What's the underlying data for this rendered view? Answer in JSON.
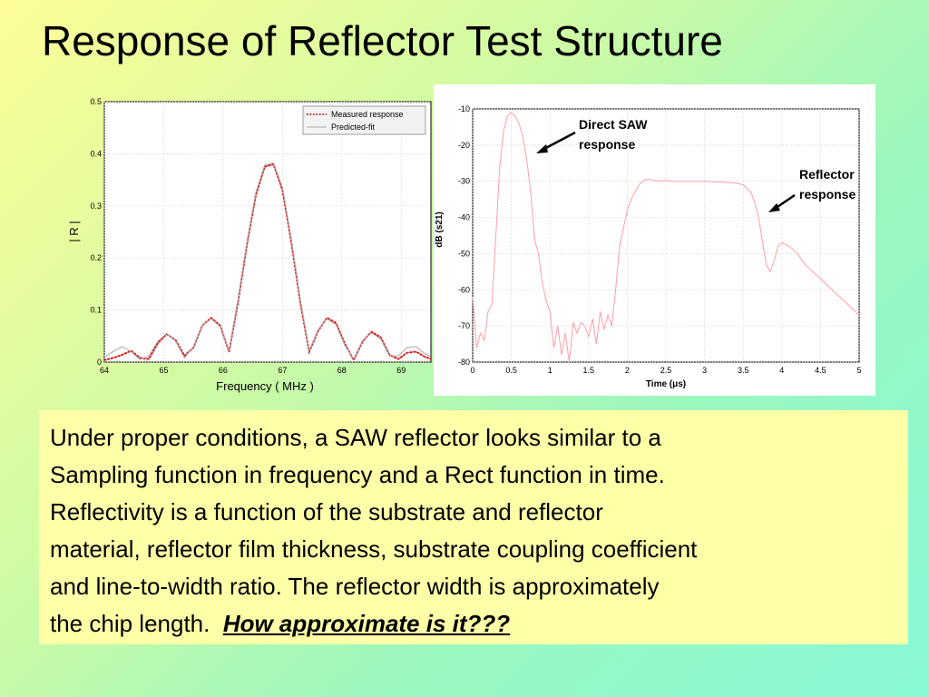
{
  "slide": {
    "title": "Response of Reflector Test Structure"
  },
  "colors": {
    "measured": "#dd1a1a",
    "predicted": "#a8a8a8",
    "time_trace": "#ff9ea8",
    "grid": "#c8c8c8",
    "caption_bg": "#ffffa8"
  },
  "chart_data": [
    {
      "type": "line",
      "xlabel": "Frequency ( MHz )",
      "ylabel": "| R |",
      "xlim": [
        64,
        69.5
      ],
      "ylim": [
        0,
        0.5
      ],
      "xticks": [
        "64",
        "65",
        "66",
        "67",
        "68",
        "69"
      ],
      "yticks": [
        "0",
        "0.1",
        "0.2",
        "0.3",
        "0.4",
        "0.5"
      ],
      "grid": true,
      "legend_position": "top-right",
      "series": [
        {
          "name": "Measured response",
          "style": "dotted",
          "x": [
            64.0,
            64.15,
            64.3,
            64.45,
            64.6,
            64.75,
            64.9,
            65.05,
            65.2,
            65.35,
            65.5,
            65.65,
            65.8,
            65.95,
            66.1,
            66.25,
            66.4,
            66.55,
            66.7,
            66.85,
            67.0,
            67.15,
            67.3,
            67.45,
            67.6,
            67.75,
            67.9,
            68.05,
            68.2,
            68.35,
            68.5,
            68.65,
            68.8,
            68.95,
            69.1,
            69.25,
            69.4,
            69.5
          ],
          "y": [
            0.004,
            0.008,
            0.014,
            0.022,
            0.008,
            0.006,
            0.036,
            0.054,
            0.042,
            0.012,
            0.028,
            0.07,
            0.085,
            0.07,
            0.02,
            0.115,
            0.225,
            0.32,
            0.375,
            0.38,
            0.33,
            0.23,
            0.115,
            0.02,
            0.06,
            0.085,
            0.075,
            0.035,
            0.004,
            0.04,
            0.058,
            0.048,
            0.014,
            0.006,
            0.018,
            0.02,
            0.01,
            0.006
          ]
        },
        {
          "name": "Predicted-fit",
          "style": "solid",
          "x": [
            64.0,
            64.15,
            64.3,
            64.45,
            64.6,
            64.75,
            64.9,
            65.05,
            65.2,
            65.35,
            65.5,
            65.65,
            65.8,
            65.95,
            66.1,
            66.25,
            66.4,
            66.55,
            66.7,
            66.85,
            67.0,
            67.15,
            67.3,
            67.45,
            67.6,
            67.75,
            67.9,
            68.05,
            68.2,
            68.35,
            68.5,
            68.65,
            68.8,
            68.95,
            69.1,
            69.25,
            69.4,
            69.5
          ],
          "y": [
            0.01,
            0.02,
            0.03,
            0.02,
            0.005,
            0.012,
            0.04,
            0.055,
            0.04,
            0.008,
            0.03,
            0.07,
            0.083,
            0.068,
            0.022,
            0.12,
            0.23,
            0.325,
            0.378,
            0.382,
            0.335,
            0.235,
            0.12,
            0.022,
            0.062,
            0.083,
            0.072,
            0.032,
            0.006,
            0.042,
            0.056,
            0.045,
            0.012,
            0.012,
            0.028,
            0.03,
            0.016,
            0.01
          ]
        }
      ]
    },
    {
      "type": "line",
      "xlabel": "Time (μs)",
      "ylabel": "dB (s21)",
      "xlim": [
        0,
        5
      ],
      "ylim": [
        -80,
        -10
      ],
      "xticks": [
        "0",
        "0.5",
        "1",
        "1.5",
        "2",
        "2.5",
        "3",
        "3.5",
        "4",
        "4.5",
        "5"
      ],
      "yticks": [
        "-10",
        "-20",
        "-30",
        "-40",
        "-50",
        "-60",
        "-70",
        "-80"
      ],
      "grid": true,
      "series": [
        {
          "x": [
            0.0,
            0.05,
            0.1,
            0.15,
            0.2,
            0.25,
            0.3,
            0.35,
            0.4,
            0.45,
            0.5,
            0.55,
            0.6,
            0.65,
            0.7,
            0.75,
            0.8,
            0.85,
            0.9,
            0.95,
            1.0,
            1.05,
            1.1,
            1.15,
            1.2,
            1.25,
            1.3,
            1.35,
            1.4,
            1.45,
            1.5,
            1.55,
            1.6,
            1.65,
            1.7,
            1.75,
            1.8,
            1.85,
            1.9,
            1.95,
            2.0,
            2.05,
            2.1,
            2.15,
            2.2,
            2.25,
            2.3,
            2.35,
            2.4,
            2.5,
            2.6,
            2.8,
            3.0,
            3.2,
            3.4,
            3.5,
            3.6,
            3.65,
            3.7,
            3.75,
            3.8,
            3.85,
            3.9,
            3.95,
            4.0,
            4.1,
            4.2,
            4.3,
            4.4,
            4.5,
            4.6,
            4.7,
            4.8,
            4.9,
            5.0
          ],
          "y": [
            -62,
            -76,
            -72,
            -74,
            -66,
            -64,
            -45,
            -26,
            -16,
            -12,
            -11,
            -12,
            -14,
            -18,
            -24,
            -33,
            -46,
            -50,
            -58,
            -63,
            -66,
            -76,
            -70,
            -78,
            -72,
            -80,
            -69,
            -72,
            -69,
            -70,
            -73,
            -68,
            -75,
            -66,
            -71,
            -67,
            -70,
            -60,
            -48,
            -43,
            -38,
            -35,
            -33,
            -31,
            -30,
            -29.5,
            -29.5,
            -29.8,
            -30,
            -29.8,
            -30,
            -30,
            -30,
            -30.2,
            -30.5,
            -31,
            -33,
            -36,
            -40,
            -47,
            -53,
            -55,
            -52,
            -48,
            -47,
            -48,
            -50,
            -53,
            -55,
            -57,
            -59,
            -61,
            -63,
            -65,
            -67
          ]
        }
      ]
    }
  ],
  "annotations": {
    "direct_saw": [
      "Direct SAW",
      "response"
    ],
    "reflector": [
      "Reflector",
      "response"
    ]
  },
  "caption": {
    "lines": [
      "Under proper conditions, a SAW reflector looks similar to a",
      "Sampling function in frequency and a Rect function in time.",
      "Reflectivity is a function of the substrate and reflector",
      "material, reflector film thickness, substrate coupling coefficient",
      "and line-to-width ratio.  The reflector width is approximately",
      "the chip length.  "
    ],
    "emphasis": "How approximate is it???"
  }
}
